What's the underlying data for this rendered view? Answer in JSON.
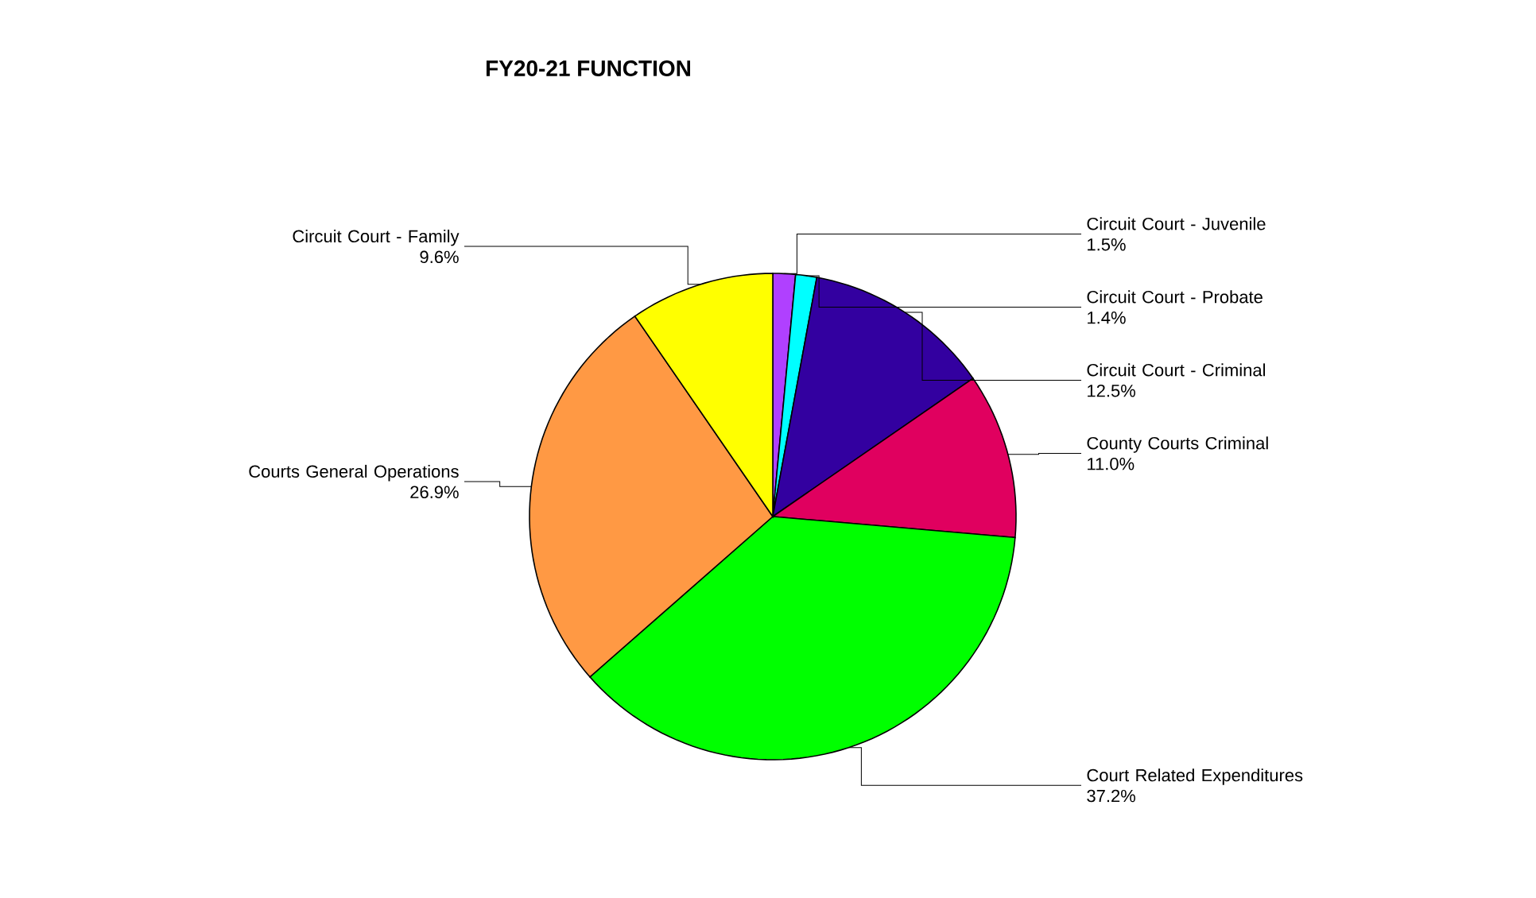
{
  "chart_data": {
    "type": "pie",
    "title": "FY20-21 FUNCTION",
    "categories": [
      "Circuit Court - Juvenile",
      "Circuit Court - Probate",
      "Circuit Court - Criminal",
      "County Courts Criminal",
      "Court Related Expenditures",
      "Courts General Operations",
      "Circuit Court - Family"
    ],
    "values": [
      1.5,
      1.4,
      12.5,
      11.0,
      37.2,
      26.9,
      9.6
    ],
    "value_labels": [
      "1.5%",
      "1.4%",
      "12.5%",
      "11.0%",
      "37.2%",
      "26.9%",
      "9.6%"
    ],
    "colors": [
      "#b040ff",
      "#00ffff",
      "#3300a0",
      "#e0005f",
      "#00ff00",
      "#ff9944",
      "#ffff00"
    ]
  }
}
